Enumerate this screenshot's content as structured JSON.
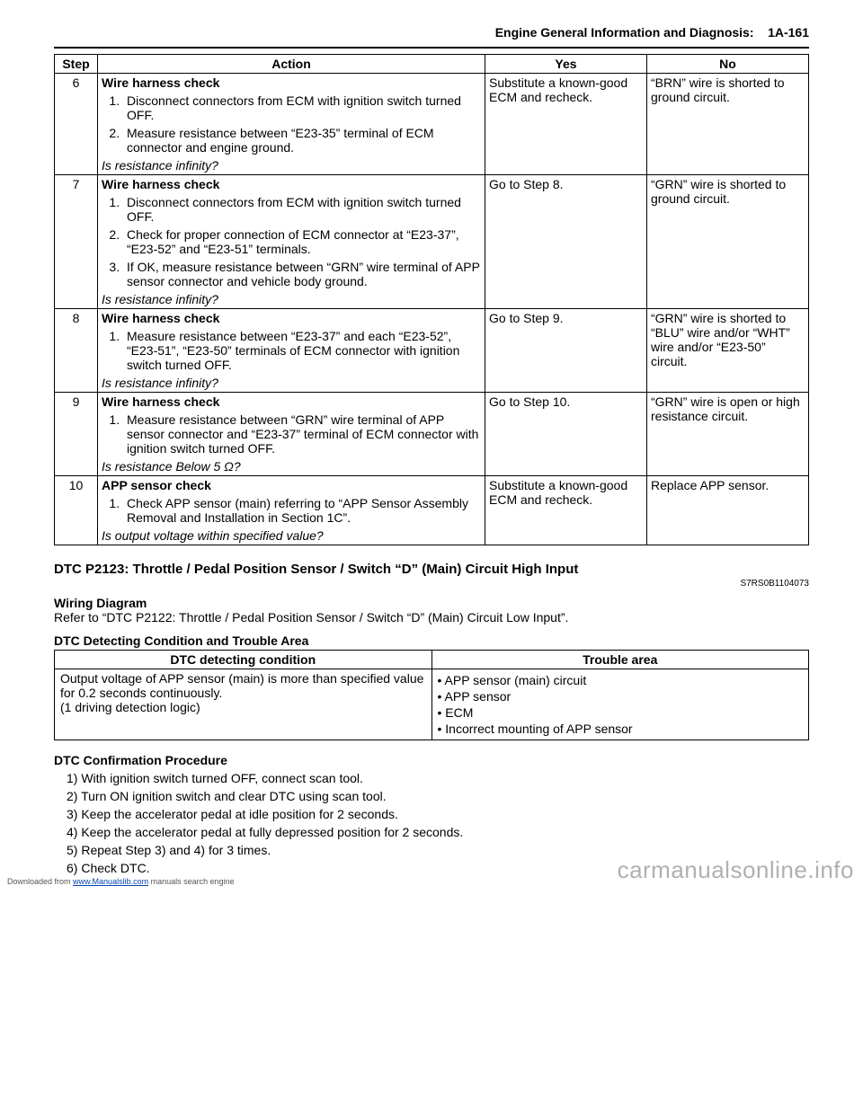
{
  "header": {
    "title": "Engine General Information and Diagnosis:",
    "page": "1A-161"
  },
  "diagTable": {
    "headers": {
      "step": "Step",
      "action": "Action",
      "yes": "Yes",
      "no": "No"
    },
    "rows": [
      {
        "step": "6",
        "title": "Wire harness check",
        "items": [
          "Disconnect connectors from ECM with ignition switch turned OFF.",
          "Measure resistance between “E23-35” terminal of ECM connector and engine ground."
        ],
        "question": "Is resistance infinity?",
        "yes": "Substitute a known-good ECM and recheck.",
        "no": "“BRN” wire is shorted to ground circuit."
      },
      {
        "step": "7",
        "title": "Wire harness check",
        "items": [
          "Disconnect connectors from ECM with ignition switch turned OFF.",
          "Check for proper connection of ECM connector at “E23-37”, “E23-52” and “E23-51” terminals.",
          "If OK, measure resistance between “GRN” wire terminal of APP sensor connector and vehicle body ground."
        ],
        "question": "Is resistance infinity?",
        "yes": "Go to Step 8.",
        "no": "“GRN” wire is shorted to ground circuit."
      },
      {
        "step": "8",
        "title": "Wire harness check",
        "items": [
          "Measure resistance between “E23-37” and each “E23-52”, “E23-51”, “E23-50” terminals of ECM connector with ignition switch turned OFF."
        ],
        "question": "Is resistance infinity?",
        "yes": "Go to Step 9.",
        "no": "“GRN” wire is shorted to “BLU” wire and/or “WHT” wire and/or “E23-50” circuit."
      },
      {
        "step": "9",
        "title": "Wire harness check",
        "items": [
          "Measure resistance between “GRN” wire terminal of APP sensor connector and “E23-37” terminal of ECM connector with ignition switch turned OFF."
        ],
        "question": "Is resistance Below 5 Ω?",
        "yes": "Go to Step 10.",
        "no": "“GRN” wire is open or high resistance circuit."
      },
      {
        "step": "10",
        "title": "APP sensor check",
        "items": [
          "Check APP sensor (main) referring to “APP Sensor Assembly Removal and Installation in Section 1C”."
        ],
        "question": "Is output voltage within specified value?",
        "yes": "Substitute a known-good ECM and recheck.",
        "no": "Replace APP sensor."
      }
    ]
  },
  "dtc": {
    "title": "DTC P2123: Throttle / Pedal Position Sensor / Switch “D” (Main) Circuit High Input",
    "ref": "S7RS0B1104073",
    "wiringTitle": "Wiring Diagram",
    "wiringText": "Refer to “DTC P2122: Throttle / Pedal Position Sensor / Switch “D” (Main) Circuit Low Input”.",
    "condTitle": "DTC Detecting Condition and Trouble Area",
    "condHeaders": {
      "cond": "DTC detecting condition",
      "trouble": "Trouble area"
    },
    "condText1": "Output voltage of APP sensor (main) is more than specified value for 0.2 seconds continuously.",
    "condText2": "(1 driving detection logic)",
    "troubleItems": [
      "APP sensor (main) circuit",
      "APP sensor",
      "ECM",
      "Incorrect mounting of APP sensor"
    ],
    "procTitle": "DTC Confirmation Procedure",
    "procSteps": [
      "With ignition switch turned OFF, connect scan tool.",
      "Turn ON ignition switch and clear DTC using scan tool.",
      "Keep the accelerator pedal at idle position for 2 seconds.",
      "Keep the accelerator pedal at fully depressed position for 2 seconds.",
      "Repeat Step 3) and 4) for 3 times.",
      "Check DTC."
    ]
  },
  "footer": {
    "prefix": "Downloaded from ",
    "link": "www.Manualslib.com",
    "suffix": " manuals search engine"
  },
  "watermark": "carmanualsonline.info"
}
